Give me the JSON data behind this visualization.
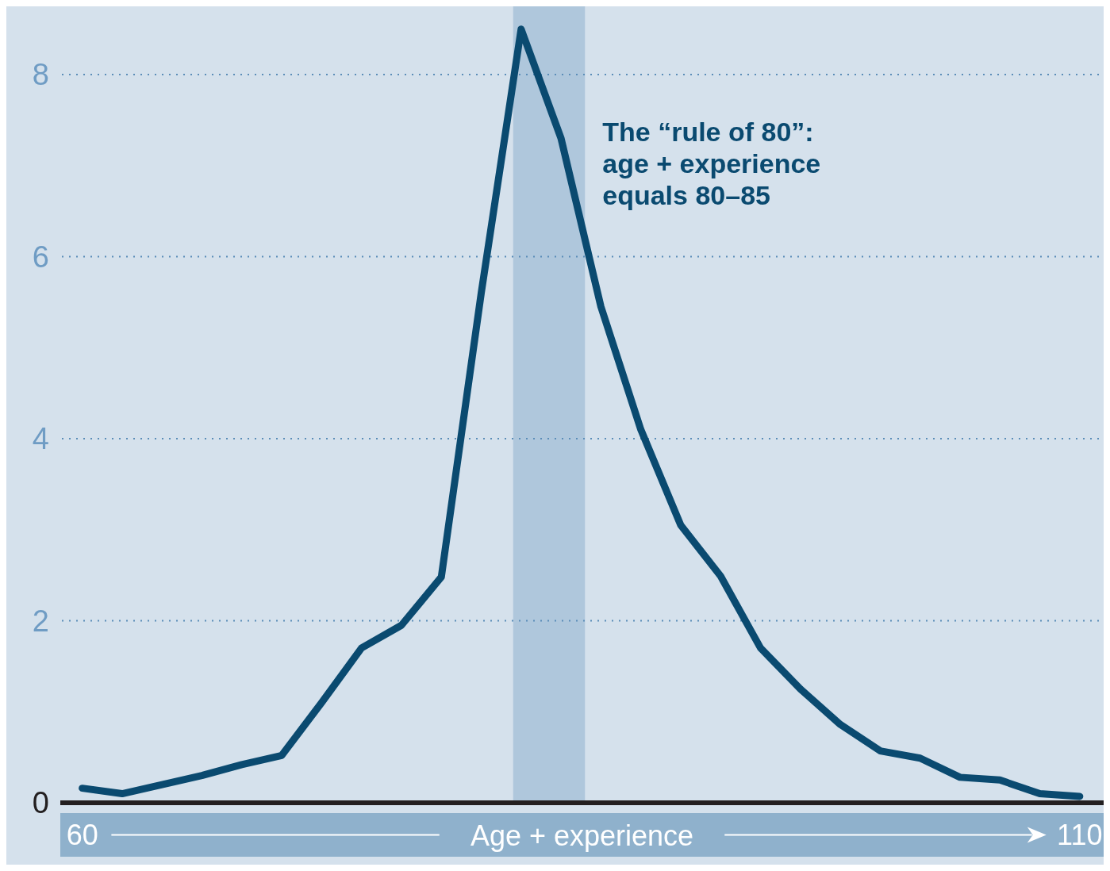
{
  "chart_data": {
    "type": "line",
    "x": [
      60,
      62,
      64,
      66,
      68,
      70,
      72,
      74,
      76,
      78,
      80,
      82,
      84,
      86,
      88,
      90,
      92,
      94,
      96,
      98,
      100,
      102,
      104,
      106,
      108,
      110
    ],
    "values": [
      0.16,
      0.1,
      0.2,
      0.3,
      0.42,
      0.52,
      1.1,
      1.7,
      1.95,
      2.48,
      5.6,
      8.5,
      7.3,
      5.45,
      4.1,
      3.05,
      2.49,
      1.7,
      1.25,
      0.86,
      0.57,
      0.49,
      0.28,
      0.25,
      0.1,
      0.07
    ],
    "color": "#0a4a70",
    "xlim": [
      58.9,
      111.2
    ],
    "xticks": [
      60,
      110
    ],
    "xlabel": "Age + experience",
    "ylim": [
      0,
      8.75
    ],
    "yticks": [
      0,
      2,
      4,
      6,
      8
    ],
    "grid": "y",
    "bands": [
      {
        "axis": "x",
        "from": 81.6,
        "to": 85.2,
        "label": "The “rule of 80”: age + experience equals 80–85",
        "color": "#afc7dc"
      }
    ]
  }
}
